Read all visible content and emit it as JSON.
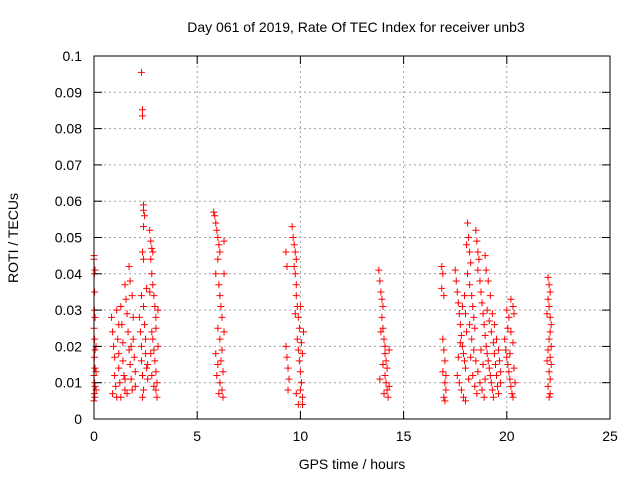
{
  "chart_data": {
    "type": "scatter",
    "title": "Day 061 of 2019, Rate Of TEC Index for receiver unb3",
    "xlabel": "GPS time / hours",
    "ylabel": "ROTI / TECUs",
    "xlim": [
      0,
      25
    ],
    "ylim": [
      0,
      0.1
    ],
    "x_ticks": [
      0,
      5,
      10,
      15,
      20,
      25
    ],
    "y_ticks": [
      0,
      0.01,
      0.02,
      0.03,
      0.04,
      0.05,
      0.06,
      0.07,
      0.08,
      0.09,
      0.1
    ],
    "x_tick_labels": [
      "0",
      "5",
      "10",
      "15",
      "20",
      "25"
    ],
    "y_tick_labels": [
      "0",
      "0.01",
      "0.02",
      "0.03",
      "0.04",
      "0.05",
      "0.06",
      "0.07",
      "0.08",
      "0.09",
      "0.1"
    ],
    "grid": true,
    "marker": "plus",
    "color": "#ff0000",
    "points": [
      [
        0.0,
        0.045
      ],
      [
        0.0,
        0.044
      ],
      [
        0.02,
        0.04
      ],
      [
        0.05,
        0.041
      ],
      [
        0.03,
        0.035
      ],
      [
        0.02,
        0.03
      ],
      [
        0.05,
        0.028
      ],
      [
        0.0,
        0.025
      ],
      [
        0.03,
        0.022
      ],
      [
        0.05,
        0.019
      ],
      [
        0.02,
        0.017
      ],
      [
        0.05,
        0.014
      ],
      [
        0.0,
        0.012
      ],
      [
        0.03,
        0.01
      ],
      [
        0.05,
        0.009
      ],
      [
        0.02,
        0.007
      ],
      [
        0.04,
        0.006
      ],
      [
        0.0,
        0.005
      ],
      [
        0.1,
        0.02
      ],
      [
        0.1,
        0.013
      ],
      [
        0.1,
        0.008
      ],
      [
        0.85,
        0.028
      ],
      [
        0.9,
        0.024
      ],
      [
        0.95,
        0.02
      ],
      [
        1.0,
        0.017
      ],
      [
        1.0,
        0.012
      ],
      [
        1.05,
        0.009
      ],
      [
        0.9,
        0.007
      ],
      [
        1.1,
        0.03
      ],
      [
        1.15,
        0.022
      ],
      [
        1.2,
        0.018
      ],
      [
        1.2,
        0.014
      ],
      [
        1.25,
        0.01
      ],
      [
        1.3,
        0.031
      ],
      [
        1.35,
        0.026
      ],
      [
        1.4,
        0.021
      ],
      [
        1.4,
        0.016
      ],
      [
        1.45,
        0.012
      ],
      [
        1.5,
        0.008
      ],
      [
        1.5,
        0.037
      ],
      [
        1.55,
        0.033
      ],
      [
        1.6,
        0.029
      ],
      [
        1.65,
        0.024
      ],
      [
        1.7,
        0.042
      ],
      [
        1.75,
        0.038
      ],
      [
        1.7,
        0.019
      ],
      [
        1.75,
        0.015
      ],
      [
        1.8,
        0.011
      ],
      [
        1.85,
        0.008
      ],
      [
        1.85,
        0.034
      ],
      [
        1.9,
        0.028
      ],
      [
        1.9,
        0.022
      ],
      [
        1.95,
        0.017
      ],
      [
        2.0,
        0.013
      ],
      [
        2.0,
        0.009
      ],
      [
        1.6,
        0.007
      ],
      [
        1.3,
        0.006
      ],
      [
        1.1,
        0.006
      ],
      [
        1.5,
        0.011
      ],
      [
        1.8,
        0.02
      ],
      [
        1.2,
        0.026
      ],
      [
        2.2,
        0.028
      ],
      [
        2.25,
        0.024
      ],
      [
        2.3,
        0.02
      ],
      [
        2.3,
        0.016
      ],
      [
        2.35,
        0.012
      ],
      [
        2.4,
        0.008
      ],
      [
        2.35,
        0.006
      ],
      [
        2.4,
        0.031
      ],
      [
        2.45,
        0.026
      ],
      [
        2.5,
        0.022
      ],
      [
        2.5,
        0.018
      ],
      [
        2.55,
        0.014
      ],
      [
        2.3,
        0.0955
      ],
      [
        2.35,
        0.0852
      ],
      [
        2.35,
        0.0835
      ],
      [
        2.4,
        0.059
      ],
      [
        2.4,
        0.0575
      ],
      [
        2.45,
        0.056
      ],
      [
        2.4,
        0.053
      ],
      [
        2.35,
        0.046
      ],
      [
        2.4,
        0.044
      ],
      [
        2.6,
        0.015
      ],
      [
        2.6,
        0.011
      ],
      [
        2.55,
        0.036
      ],
      [
        2.3,
        0.034
      ],
      [
        2.7,
        0.052
      ],
      [
        2.75,
        0.049
      ],
      [
        2.8,
        0.047
      ],
      [
        2.85,
        0.046
      ],
      [
        2.75,
        0.044
      ],
      [
        2.8,
        0.04
      ],
      [
        2.85,
        0.037
      ],
      [
        2.9,
        0.034
      ],
      [
        2.95,
        0.031
      ],
      [
        3.0,
        0.028
      ],
      [
        3.0,
        0.025
      ],
      [
        2.85,
        0.022
      ],
      [
        2.9,
        0.019
      ],
      [
        2.95,
        0.016
      ],
      [
        3.0,
        0.013
      ],
      [
        3.05,
        0.01
      ],
      [
        3.0,
        0.008
      ],
      [
        3.05,
        0.006
      ],
      [
        2.8,
        0.024
      ],
      [
        2.75,
        0.018
      ],
      [
        2.8,
        0.012
      ],
      [
        3.1,
        0.03
      ],
      [
        3.1,
        0.02
      ],
      [
        2.9,
        0.009
      ],
      [
        2.7,
        0.035
      ],
      [
        5.8,
        0.057
      ],
      [
        5.85,
        0.056
      ],
      [
        5.9,
        0.054
      ],
      [
        5.95,
        0.052
      ],
      [
        6.0,
        0.05
      ],
      [
        6.05,
        0.048
      ],
      [
        6.1,
        0.046
      ],
      [
        6.0,
        0.044
      ],
      [
        5.9,
        0.04
      ],
      [
        6.05,
        0.037
      ],
      [
        6.1,
        0.034
      ],
      [
        6.15,
        0.031
      ],
      [
        6.2,
        0.028
      ],
      [
        6.0,
        0.025
      ],
      [
        6.1,
        0.022
      ],
      [
        6.2,
        0.019
      ],
      [
        6.15,
        0.016
      ],
      [
        6.25,
        0.013
      ],
      [
        6.1,
        0.01
      ],
      [
        6.2,
        0.008
      ],
      [
        6.25,
        0.006
      ],
      [
        6.0,
        0.015
      ],
      [
        5.95,
        0.012
      ],
      [
        6.3,
        0.049
      ],
      [
        6.3,
        0.04
      ],
      [
        6.3,
        0.024
      ],
      [
        5.9,
        0.018
      ],
      [
        6.05,
        0.007
      ],
      [
        9.3,
        0.046
      ],
      [
        9.35,
        0.042
      ],
      [
        9.3,
        0.02
      ],
      [
        9.35,
        0.017
      ],
      [
        9.4,
        0.014
      ],
      [
        9.45,
        0.011
      ],
      [
        9.4,
        0.008
      ],
      [
        9.6,
        0.053
      ],
      [
        9.65,
        0.05
      ],
      [
        9.7,
        0.048
      ],
      [
        9.75,
        0.046
      ],
      [
        9.8,
        0.044
      ],
      [
        9.7,
        0.042
      ],
      [
        9.75,
        0.04
      ],
      [
        9.8,
        0.037
      ],
      [
        9.8,
        0.034
      ],
      [
        9.85,
        0.031
      ],
      [
        9.9,
        0.028
      ],
      [
        9.95,
        0.025
      ],
      [
        9.85,
        0.022
      ],
      [
        9.9,
        0.019
      ],
      [
        9.95,
        0.016
      ],
      [
        10.0,
        0.013
      ],
      [
        10.05,
        0.01
      ],
      [
        10.0,
        0.008
      ],
      [
        10.1,
        0.006
      ],
      [
        9.9,
        0.004
      ],
      [
        10.1,
        0.018
      ],
      [
        10.15,
        0.024
      ],
      [
        9.75,
        0.029
      ],
      [
        10.1,
        0.004
      ],
      [
        9.8,
        0.007
      ],
      [
        10.0,
        0.031
      ],
      [
        10.05,
        0.021
      ],
      [
        13.8,
        0.041
      ],
      [
        13.85,
        0.038
      ],
      [
        13.9,
        0.035
      ],
      [
        13.95,
        0.033
      ],
      [
        14.0,
        0.031
      ],
      [
        13.95,
        0.028
      ],
      [
        14.0,
        0.025
      ],
      [
        14.05,
        0.022
      ],
      [
        14.1,
        0.02
      ],
      [
        14.1,
        0.018
      ],
      [
        14.15,
        0.016
      ],
      [
        14.2,
        0.014
      ],
      [
        14.1,
        0.012
      ],
      [
        14.15,
        0.01
      ],
      [
        14.2,
        0.008
      ],
      [
        14.25,
        0.006
      ],
      [
        13.9,
        0.024
      ],
      [
        14.0,
        0.015
      ],
      [
        13.85,
        0.011
      ],
      [
        14.3,
        0.019
      ],
      [
        14.3,
        0.009
      ],
      [
        14.05,
        0.007
      ],
      [
        16.85,
        0.042
      ],
      [
        16.9,
        0.04
      ],
      [
        16.85,
        0.036
      ],
      [
        16.95,
        0.034
      ],
      [
        16.9,
        0.022
      ],
      [
        16.95,
        0.019
      ],
      [
        17.0,
        0.016
      ],
      [
        16.9,
        0.013
      ],
      [
        17.0,
        0.01
      ],
      [
        17.05,
        0.008
      ],
      [
        16.95,
        0.006
      ],
      [
        17.0,
        0.005
      ],
      [
        17.05,
        0.012
      ],
      [
        17.5,
        0.041
      ],
      [
        17.55,
        0.038
      ],
      [
        17.6,
        0.035
      ],
      [
        17.65,
        0.032
      ],
      [
        17.7,
        0.029
      ],
      [
        17.75,
        0.026
      ],
      [
        17.8,
        0.023
      ],
      [
        17.85,
        0.02
      ],
      [
        17.9,
        0.018
      ],
      [
        17.95,
        0.016
      ],
      [
        18.0,
        0.014
      ],
      [
        17.6,
        0.012
      ],
      [
        17.7,
        0.01
      ],
      [
        17.8,
        0.008
      ],
      [
        17.9,
        0.006
      ],
      [
        18.0,
        0.005
      ],
      [
        17.65,
        0.017
      ],
      [
        17.75,
        0.021
      ],
      [
        18.05,
        0.048
      ],
      [
        18.1,
        0.054
      ],
      [
        18.15,
        0.05
      ],
      [
        18.2,
        0.046
      ],
      [
        18.25,
        0.043
      ],
      [
        18.1,
        0.04
      ],
      [
        18.2,
        0.037
      ],
      [
        18.3,
        0.034
      ],
      [
        18.35,
        0.031
      ],
      [
        18.4,
        0.028
      ],
      [
        18.45,
        0.025
      ],
      [
        18.5,
        0.052
      ],
      [
        18.55,
        0.049
      ],
      [
        18.6,
        0.046
      ],
      [
        18.65,
        0.044
      ],
      [
        18.6,
        0.041
      ],
      [
        18.7,
        0.038
      ],
      [
        18.75,
        0.035
      ],
      [
        18.8,
        0.032
      ],
      [
        18.85,
        0.029
      ],
      [
        18.9,
        0.026
      ],
      [
        18.95,
        0.023
      ],
      [
        19.0,
        0.02
      ],
      [
        19.05,
        0.018
      ],
      [
        19.1,
        0.016
      ],
      [
        19.15,
        0.014
      ],
      [
        19.2,
        0.012
      ],
      [
        19.25,
        0.01
      ],
      [
        19.3,
        0.008
      ],
      [
        19.35,
        0.006
      ],
      [
        18.3,
        0.022
      ],
      [
        18.4,
        0.019
      ],
      [
        18.5,
        0.016
      ],
      [
        18.6,
        0.013
      ],
      [
        18.7,
        0.01
      ],
      [
        18.8,
        0.008
      ],
      [
        18.9,
        0.006
      ],
      [
        18.35,
        0.012
      ],
      [
        18.45,
        0.009
      ],
      [
        18.55,
        0.007
      ],
      [
        18.2,
        0.026
      ],
      [
        18.25,
        0.017
      ],
      [
        18.15,
        0.011
      ],
      [
        18.05,
        0.024
      ],
      [
        18.75,
        0.019
      ],
      [
        18.85,
        0.015
      ],
      [
        18.95,
        0.011
      ],
      [
        19.05,
        0.03
      ],
      [
        19.15,
        0.027
      ],
      [
        19.25,
        0.024
      ],
      [
        19.35,
        0.021
      ],
      [
        19.4,
        0.018
      ],
      [
        19.45,
        0.015
      ],
      [
        19.5,
        0.012
      ],
      [
        19.55,
        0.009
      ],
      [
        19.6,
        0.007
      ],
      [
        19.3,
        0.029
      ],
      [
        19.4,
        0.026
      ],
      [
        19.5,
        0.022
      ],
      [
        19.6,
        0.019
      ],
      [
        19.2,
        0.034
      ],
      [
        19.1,
        0.038
      ],
      [
        19.0,
        0.041
      ],
      [
        18.95,
        0.045
      ],
      [
        19.65,
        0.016
      ],
      [
        19.7,
        0.013
      ],
      [
        19.7,
        0.01
      ],
      [
        17.85,
        0.031
      ],
      [
        17.95,
        0.034
      ],
      [
        18.0,
        0.029
      ],
      [
        19.9,
        0.022
      ],
      [
        19.95,
        0.019
      ],
      [
        20.0,
        0.017
      ],
      [
        20.05,
        0.015
      ],
      [
        20.1,
        0.013
      ],
      [
        20.15,
        0.011
      ],
      [
        20.2,
        0.009
      ],
      [
        20.25,
        0.007
      ],
      [
        20.0,
        0.03
      ],
      [
        20.1,
        0.028
      ],
      [
        20.2,
        0.033
      ],
      [
        20.3,
        0.031
      ],
      [
        20.35,
        0.029
      ],
      [
        20.3,
        0.021
      ],
      [
        20.35,
        0.014
      ],
      [
        20.4,
        0.01
      ],
      [
        20.3,
        0.006
      ],
      [
        20.2,
        0.024
      ],
      [
        20.05,
        0.025
      ],
      [
        20.15,
        0.018
      ],
      [
        22.0,
        0.039
      ],
      [
        22.05,
        0.037
      ],
      [
        22.1,
        0.035
      ],
      [
        22.0,
        0.033
      ],
      [
        22.05,
        0.031
      ],
      [
        22.1,
        0.028
      ],
      [
        22.15,
        0.026
      ],
      [
        22.1,
        0.024
      ],
      [
        22.05,
        0.022
      ],
      [
        22.0,
        0.019
      ],
      [
        22.1,
        0.017
      ],
      [
        22.15,
        0.015
      ],
      [
        22.05,
        0.013
      ],
      [
        22.1,
        0.011
      ],
      [
        22.0,
        0.009
      ],
      [
        22.1,
        0.007
      ],
      [
        22.05,
        0.006
      ],
      [
        22.15,
        0.02
      ],
      [
        21.95,
        0.016
      ],
      [
        21.95,
        0.029
      ]
    ]
  }
}
